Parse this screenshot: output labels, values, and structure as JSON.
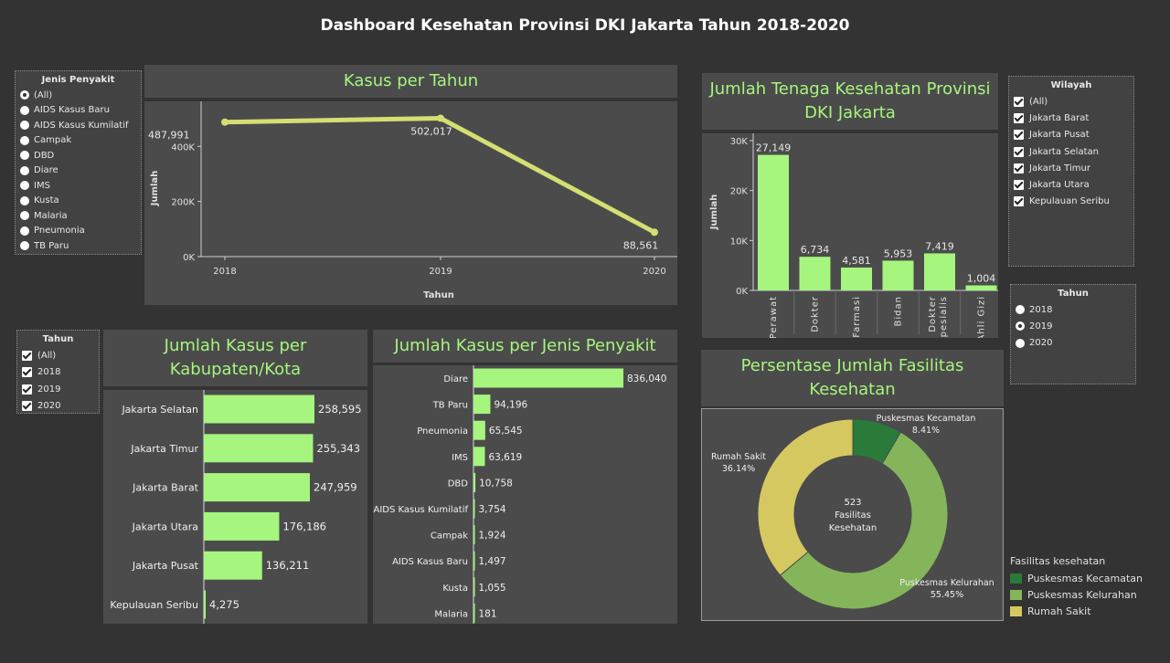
{
  "title": "Dashboard Kesehatan Provinsi DKI Jakarta Tahun 2018-2020",
  "jenis_filter": {
    "header": "Jenis Penyakit",
    "selected": 0,
    "options": [
      "(All)",
      "AIDS Kasus Baru",
      "AIDS Kasus Kumilatif",
      "Campak",
      "DBD",
      "Diare",
      "IMS",
      "Kusta",
      "Malaria",
      "Pneumonia",
      "TB Paru"
    ]
  },
  "tahun_filter_left": {
    "header": "Tahun",
    "options": [
      "(All)",
      "2018",
      "2019",
      "2020"
    ]
  },
  "wilayah_filter": {
    "header": "Wilayah",
    "options": [
      "(All)",
      "Jakarta Barat",
      "Jakarta Pusat",
      "Jakarta Selatan",
      "Jakarta Timur",
      "Jakarta Utara",
      "Kepulauan Seribu"
    ]
  },
  "tahun_filter_right": {
    "header": "Tahun",
    "selected": 1,
    "options": [
      "2018",
      "2019",
      "2020"
    ]
  },
  "kasus_tahun": {
    "title": "Kasus per Tahun",
    "chart_data": {
      "type": "line",
      "x": [
        "2018",
        "2019",
        "2020"
      ],
      "values": [
        487991,
        502017,
        88561
      ],
      "labels": [
        "487,991",
        "502,017",
        "88,561"
      ],
      "ylabel": "Jumlah",
      "xlabel": "Tahun",
      "yticks": [
        "0K",
        "200K",
        "400K"
      ],
      "ylim": [
        0,
        550000
      ],
      "color": "#d5de72"
    }
  },
  "tenaga": {
    "title_line1": "Jumlah Tenaga Kesehatan Provinsi",
    "title_line2": "DKI Jakarta",
    "chart_data": {
      "type": "bar",
      "categories": [
        "Perawat",
        "Dokter",
        "Farmasi",
        "Bidan",
        "Dokter Spesialis",
        "Ahli Gizi"
      ],
      "category_lines": [
        [
          "Perawat"
        ],
        [
          "Dokter"
        ],
        [
          "Farmasi"
        ],
        [
          "Bidan"
        ],
        [
          "Dokter",
          "Spesialis"
        ],
        [
          "Ahli Gizi"
        ]
      ],
      "values": [
        27149,
        6734,
        4581,
        5953,
        7419,
        1004
      ],
      "labels": [
        "27,149",
        "6,734",
        "4,581",
        "5,953",
        "7,419",
        "1,004"
      ],
      "ylabel": "Jumlah",
      "yticks": [
        "0K",
        "10K",
        "20K",
        "30K"
      ],
      "ylim": [
        0,
        30000
      ],
      "color": "#a6f57e"
    }
  },
  "kabupaten": {
    "title_line1": "Jumlah Kasus per",
    "title_line2": "Kabupaten/Kota",
    "chart_data": {
      "type": "bar",
      "orientation": "horizontal",
      "categories": [
        "Jakarta Selatan",
        "Jakarta Timur",
        "Jakarta Barat",
        "Jakarta Utara",
        "Jakarta Pusat",
        "Kepulauan Seribu"
      ],
      "values": [
        258595,
        255343,
        247959,
        176186,
        136211,
        4275
      ],
      "labels": [
        "258,595",
        "255,343",
        "247,959",
        "176,186",
        "136,211",
        "4,275"
      ],
      "color": "#a6f57e"
    }
  },
  "jenis": {
    "title": "Jumlah Kasus per Jenis Penyakit",
    "chart_data": {
      "type": "bar",
      "orientation": "horizontal",
      "categories": [
        "Diare",
        "TB Paru",
        "Pneumonia",
        "IMS",
        "DBD",
        "AIDS Kasus Kumilatif",
        "Campak",
        "AIDS Kasus Baru",
        "Kusta",
        "Malaria"
      ],
      "values": [
        836040,
        94196,
        65545,
        63619,
        10758,
        3754,
        1924,
        1497,
        1055,
        181
      ],
      "labels": [
        "836,040",
        "94,196",
        "65,545",
        "63,619",
        "10,758",
        "3,754",
        "1,924",
        "1,497",
        "1,055",
        "181"
      ],
      "color": "#a6f57e"
    }
  },
  "fasilitas": {
    "title_line1": "Persentase Jumlah Fasilitas",
    "title_line2": "Kesehatan",
    "center_lines": [
      "523",
      "Fasilitas",
      "Kesehatan"
    ],
    "chart_data": {
      "type": "pie",
      "categories": [
        "Puskesmas Kecamatan",
        "Puskesmas Kelurahan",
        "Rumah Sakit"
      ],
      "values": [
        8.41,
        55.45,
        36.14
      ],
      "labels": [
        "8.41%",
        "55.45%",
        "36.14%"
      ],
      "colors": [
        "#2a7a3a",
        "#85b55a",
        "#d5c860"
      ]
    },
    "legend_title": "Fasilitas kesehatan",
    "legend": [
      "Puskesmas Kecamatan",
      "Puskesmas Kelurahan",
      "Rumah Sakit"
    ]
  }
}
